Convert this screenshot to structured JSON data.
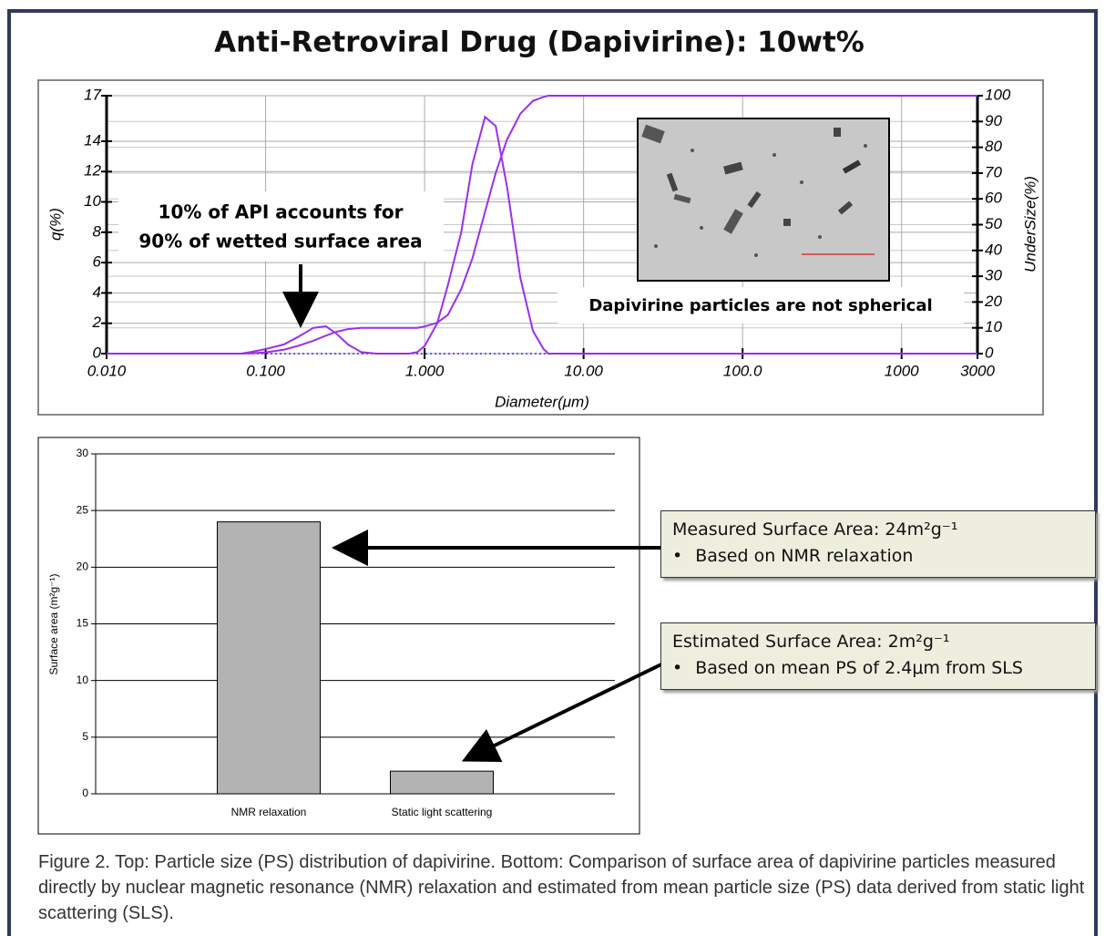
{
  "title": "Anti-Retroviral Drug (Dapivirine): 10wt%",
  "chart_data": [
    {
      "type": "line",
      "x_label": "Diameter(μm)",
      "y_label": "q(%)",
      "y2_label": "UnderSize(%)",
      "log_x": true,
      "xlim": [
        0.01,
        3000
      ],
      "xticks": [
        {
          "value": 0.01,
          "label": "0.010"
        },
        {
          "value": 0.1,
          "label": "0.100"
        },
        {
          "value": 1,
          "label": "1.000"
        },
        {
          "value": 10,
          "label": "10.00"
        },
        {
          "value": 100,
          "label": "100.0"
        },
        1000,
        3000
      ],
      "ylim": [
        0,
        17
      ],
      "yticks": [
        0,
        2,
        4,
        6,
        8,
        10,
        12,
        14,
        17
      ],
      "y2lim": [
        0,
        100
      ],
      "y2ticks": [
        0,
        10,
        20,
        30,
        40,
        50,
        60,
        70,
        80,
        90,
        100
      ],
      "grid": true,
      "x": [
        0.01,
        0.07,
        0.08,
        0.1,
        0.13,
        0.16,
        0.2,
        0.24,
        0.28,
        0.33,
        0.4,
        0.5,
        0.8,
        0.9,
        1.0,
        1.2,
        1.4,
        1.7,
        2.0,
        2.4,
        2.8,
        3.3,
        4.0,
        4.8,
        5.6,
        6.0,
        3000
      ],
      "series": [
        {
          "color": "#9b30e8",
          "values": [
            0,
            0,
            0.1,
            0.3,
            0.6,
            1.1,
            1.7,
            1.8,
            1.3,
            0.6,
            0.1,
            0,
            0,
            0.1,
            0.5,
            2.0,
            4.5,
            8,
            12.5,
            15.6,
            15,
            11,
            5,
            1.5,
            0.3,
            0,
            0
          ]
        },
        {
          "color": "#9b30e8",
          "axis": "y2",
          "values": [
            0,
            0,
            0.1,
            0.5,
            1.5,
            3,
            5,
            7,
            8.5,
            9.5,
            10,
            10,
            10,
            10,
            10.5,
            12,
            15,
            25,
            37,
            55,
            70,
            83,
            93,
            98,
            99.5,
            100,
            100
          ]
        }
      ],
      "annotations": [
        "10% of API accounts for",
        "90% of wetted surface area",
        "Dapivirine particles are not spherical"
      ]
    },
    {
      "type": "bar",
      "y_label": "Surface area (m²g⁻¹)",
      "categories": [
        "NMR relaxation",
        "Static light scattering"
      ],
      "values": [
        24,
        2
      ],
      "color": "#b3b3b3",
      "ylim": [
        0,
        30
      ],
      "yticks": [
        0,
        5,
        10,
        15,
        20,
        25,
        30
      ],
      "grid": true
    }
  ],
  "callouts": [
    {
      "heading": "Measured Surface Area: 24m²g⁻¹",
      "bullet": "Based on NMR relaxation"
    },
    {
      "heading": "Estimated Surface Area: 2m²g⁻¹",
      "bullet": "Based on mean PS of 2.4μm from SLS"
    }
  ],
  "caption": "Figure 2. Top: Particle size (PS) distribution of dapivirine. Bottom: Comparison of surface area of dapivirine particles measured directly by nuclear magnetic resonance (NMR) relaxation and estimated from mean particle size (PS) data derived from static light scattering (SLS)."
}
